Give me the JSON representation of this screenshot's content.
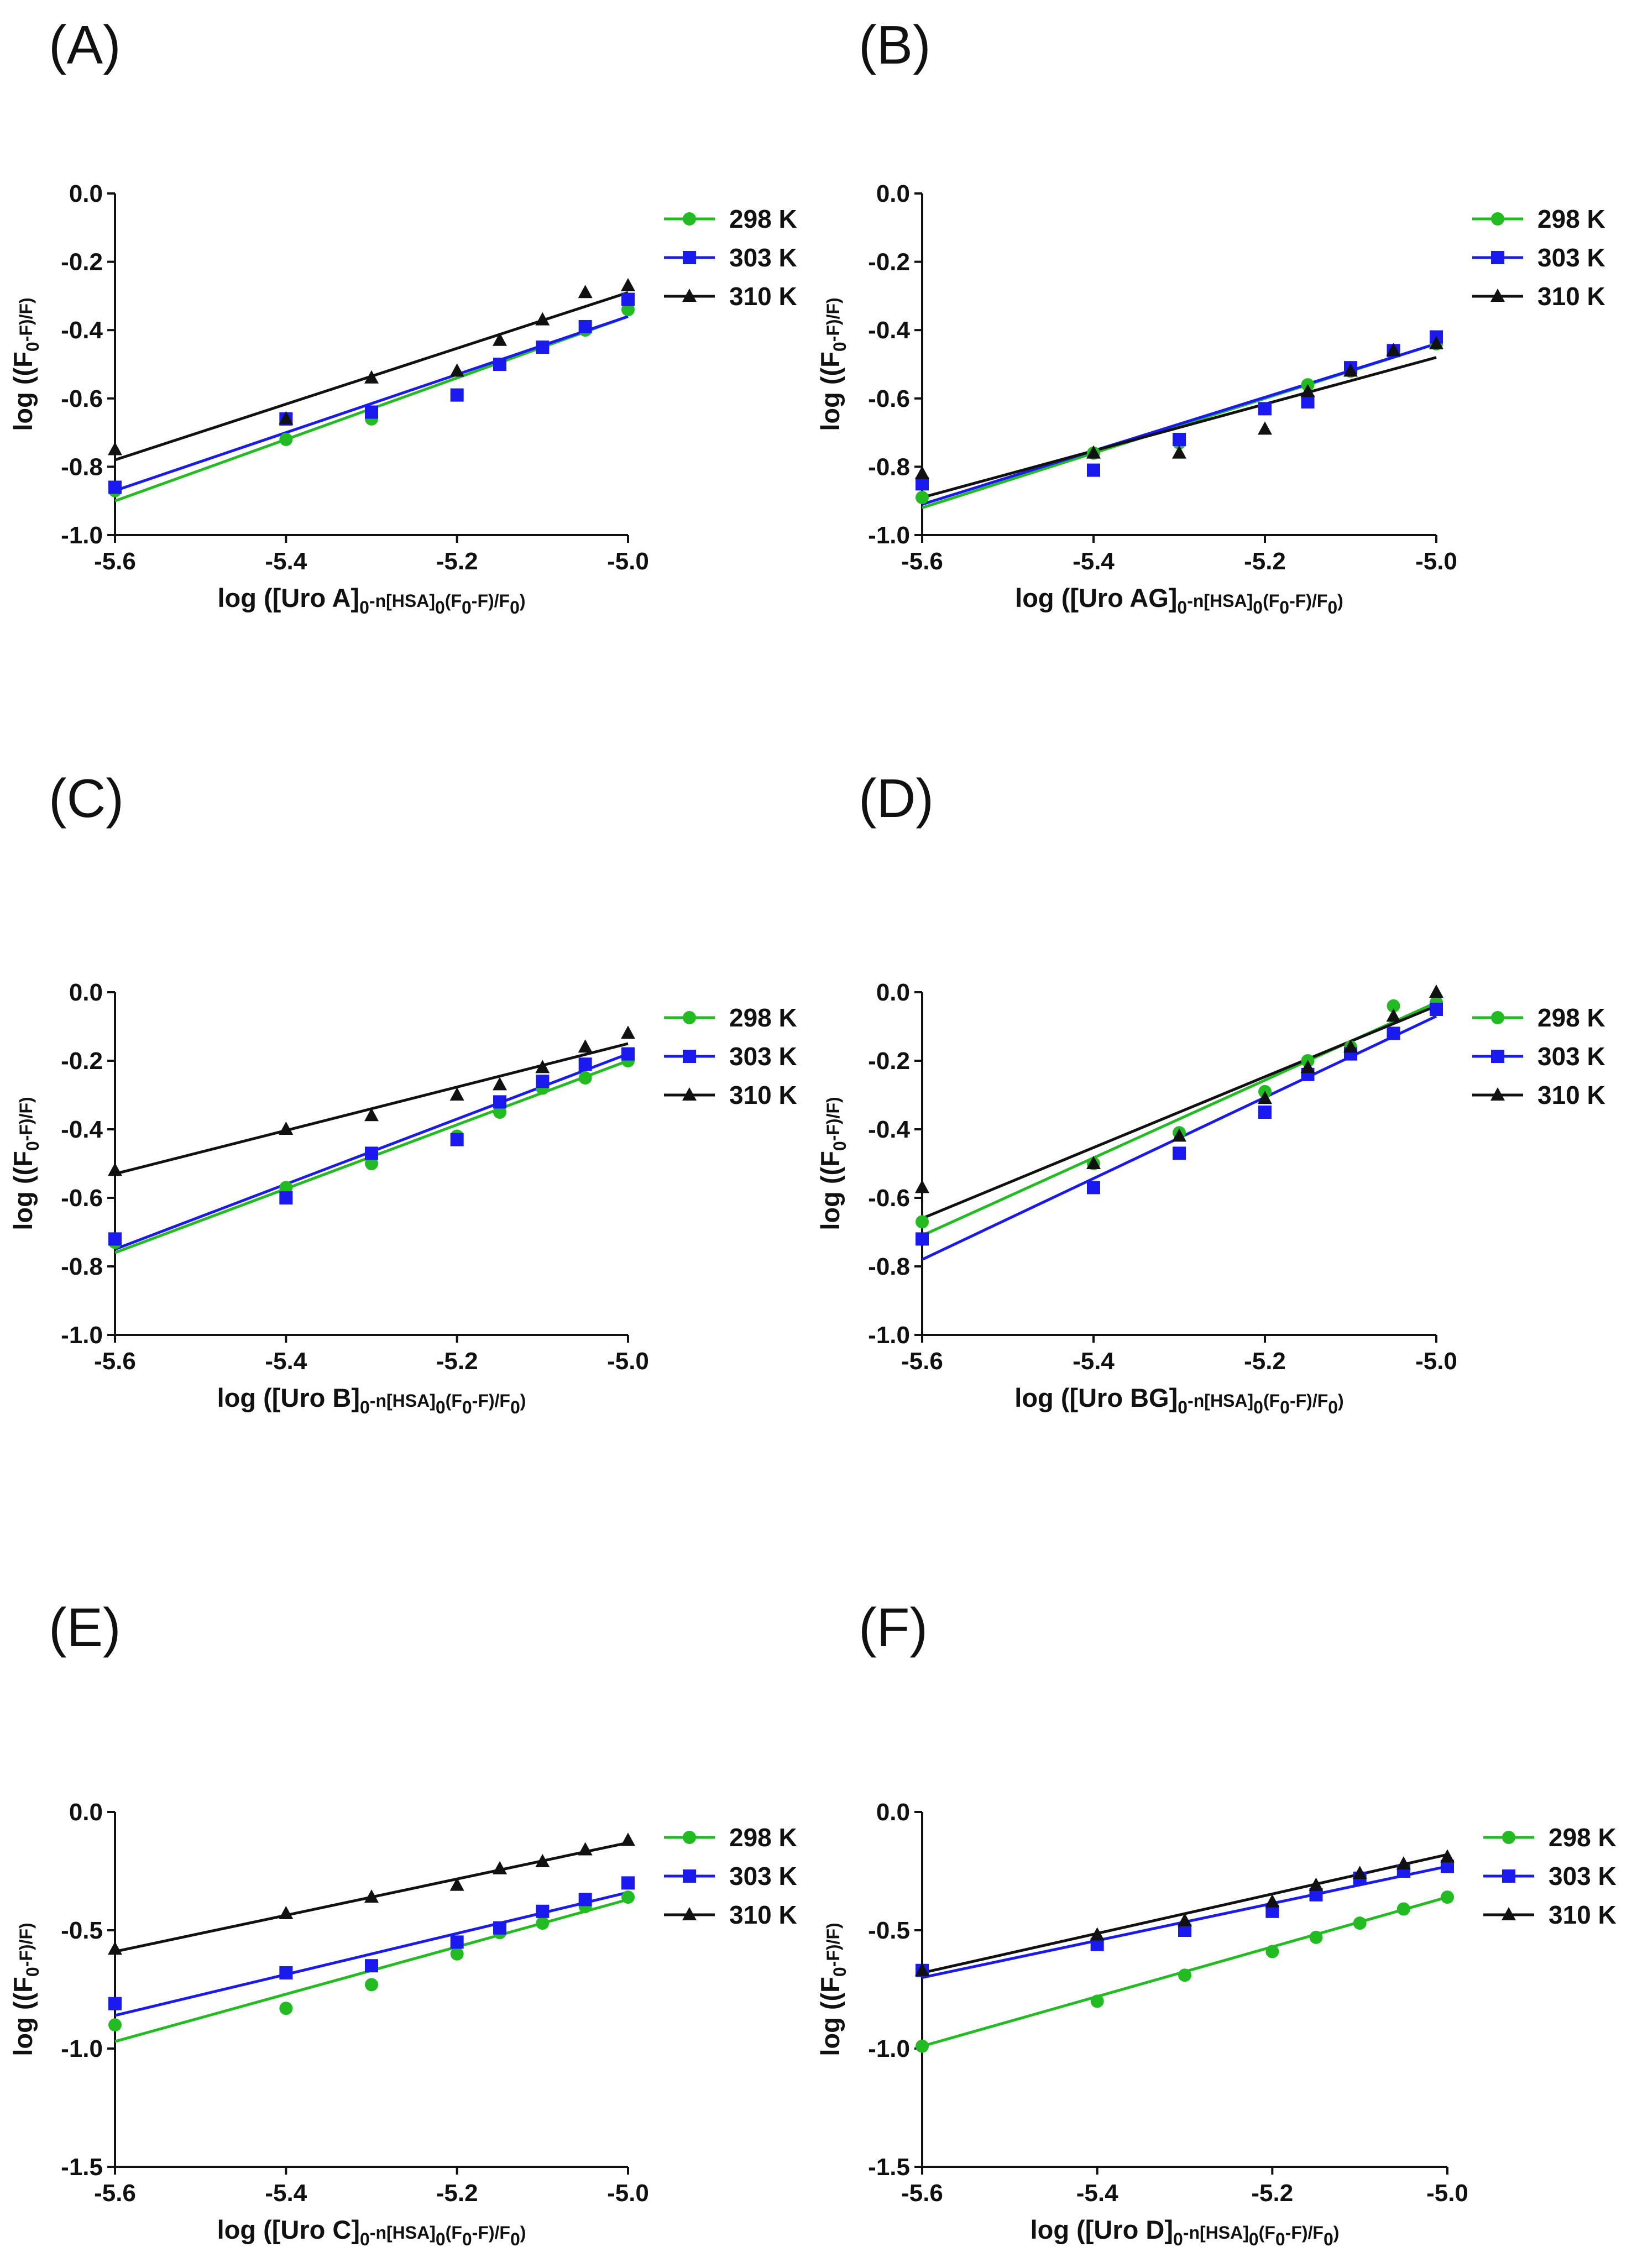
{
  "colors": {
    "298 K": "#22bb22",
    "303 K": "#1a1aee",
    "310 K": "#111111"
  },
  "chart_data": [
    {
      "type": "scatter",
      "panel": "(A)",
      "xlabel": {
        "pre": "log ([Uro A]",
        "s1": "0",
        "mid": "-n[HSA]",
        "s2": "0",
        "mid2": "(F",
        "s3": "0",
        "mid3": "-F)/F",
        "s4": "0",
        "post": ")"
      },
      "ylabel": {
        "pre": "log ((F",
        "sub": "0",
        "post": "-F)/F)"
      },
      "xlim": [
        -5.6,
        -5.0
      ],
      "ylim": [
        -1.0,
        0.0
      ],
      "xticks": [
        -5.6,
        -5.4,
        -5.2,
        -5.0
      ],
      "xtick_labels": [
        "-5.6",
        "-5.4",
        "-5.2",
        "-5.0"
      ],
      "yticks": [
        -1.0,
        -0.8,
        -0.6,
        -0.4,
        -0.2,
        0.0
      ],
      "ytick_labels": [
        "-1.0",
        "-0.8",
        "-0.6",
        "-0.4",
        "-0.2",
        "0.0"
      ],
      "x": [
        -5.6,
        -5.4,
        -5.3,
        -5.2,
        -5.15,
        -5.1,
        -5.05,
        -5.0
      ],
      "series": [
        {
          "name": "298 K",
          "marker": "circle",
          "values": [
            -0.87,
            -0.72,
            -0.66,
            -0.59,
            -0.5,
            -0.45,
            -0.4,
            -0.34
          ],
          "fit": [
            -0.9,
            -0.36
          ]
        },
        {
          "name": "303 K",
          "marker": "square",
          "values": [
            -0.86,
            -0.66,
            -0.64,
            -0.59,
            -0.5,
            -0.45,
            -0.39,
            -0.31
          ],
          "fit": [
            -0.87,
            -0.36
          ]
        },
        {
          "name": "310 K",
          "marker": "triangle",
          "values": [
            -0.75,
            -0.66,
            -0.54,
            -0.52,
            -0.43,
            -0.37,
            -0.29,
            -0.27
          ],
          "fit": [
            -0.78,
            -0.29
          ]
        }
      ]
    },
    {
      "type": "scatter",
      "panel": "(B)",
      "xlabel": {
        "pre": "log ([Uro AG]",
        "s1": "0",
        "mid": "-n[HSA]",
        "s2": "0",
        "mid2": "(F",
        "s3": "0",
        "mid3": "-F)/F",
        "s4": "0",
        "post": ")"
      },
      "ylabel": {
        "pre": "log ((F",
        "sub": "0",
        "post": "-F)/F)"
      },
      "xlim": [
        -5.6,
        -5.0
      ],
      "ylim": [
        -1.0,
        0.0
      ],
      "xticks": [
        -5.6,
        -5.4,
        -5.2,
        -5.0
      ],
      "xtick_labels": [
        "-5.6",
        "-5.4",
        "-5.2",
        "-5.0"
      ],
      "yticks": [
        -1.0,
        -0.8,
        -0.6,
        -0.4,
        -0.2,
        0.0
      ],
      "ytick_labels": [
        "-1.0",
        "-0.8",
        "-0.6",
        "-0.4",
        "-0.2",
        "0.0"
      ],
      "x": [
        -5.6,
        -5.4,
        -5.3,
        -5.2,
        -5.15,
        -5.1,
        -5.05,
        -5.0
      ],
      "series": [
        {
          "name": "298 K",
          "marker": "circle",
          "values": [
            -0.89,
            -0.76,
            -0.73,
            -0.63,
            -0.56,
            -0.52,
            -0.46,
            -0.44
          ],
          "fit": [
            -0.92,
            -0.44
          ]
        },
        {
          "name": "303 K",
          "marker": "square",
          "values": [
            -0.85,
            -0.81,
            -0.72,
            -0.63,
            -0.61,
            -0.51,
            -0.46,
            -0.42
          ],
          "fit": [
            -0.91,
            -0.44
          ]
        },
        {
          "name": "310 K",
          "marker": "triangle",
          "values": [
            -0.82,
            -0.76,
            -0.76,
            -0.69,
            -0.58,
            -0.52,
            -0.46,
            -0.44
          ],
          "fit": [
            -0.89,
            -0.48
          ]
        }
      ]
    },
    {
      "type": "scatter",
      "panel": "(C)",
      "xlabel": {
        "pre": "log ([Uro B]",
        "s1": "0",
        "mid": "-n[HSA]",
        "s2": "0",
        "mid2": "(F",
        "s3": "0",
        "mid3": "-F)/F",
        "s4": "0",
        "post": ")"
      },
      "ylabel": {
        "pre": "log ((F",
        "sub": "0",
        "post": "-F)/F)"
      },
      "xlim": [
        -5.6,
        -5.0
      ],
      "ylim": [
        -1.0,
        0.0
      ],
      "xticks": [
        -5.6,
        -5.4,
        -5.2,
        -5.0
      ],
      "xtick_labels": [
        "-5.6",
        "-5.4",
        "-5.2",
        "-5.0"
      ],
      "yticks": [
        -1.0,
        -0.8,
        -0.6,
        -0.4,
        -0.2,
        0.0
      ],
      "ytick_labels": [
        "-1.0",
        "-0.8",
        "-0.6",
        "-0.4",
        "-0.2",
        "0.0"
      ],
      "x": [
        -5.6,
        -5.4,
        -5.3,
        -5.2,
        -5.15,
        -5.1,
        -5.05,
        -5.0
      ],
      "series": [
        {
          "name": "298 K",
          "marker": "circle",
          "values": [
            -0.73,
            -0.57,
            -0.5,
            -0.42,
            -0.35,
            -0.28,
            -0.25,
            -0.2
          ],
          "fit": [
            -0.76,
            -0.2
          ]
        },
        {
          "name": "303 K",
          "marker": "square",
          "values": [
            -0.72,
            -0.6,
            -0.47,
            -0.43,
            -0.32,
            -0.26,
            -0.21,
            -0.18
          ],
          "fit": [
            -0.75,
            -0.18
          ]
        },
        {
          "name": "310 K",
          "marker": "triangle",
          "values": [
            -0.52,
            -0.4,
            -0.36,
            -0.3,
            -0.27,
            -0.22,
            -0.16,
            -0.12
          ],
          "fit": [
            -0.53,
            -0.15
          ]
        }
      ]
    },
    {
      "type": "scatter",
      "panel": "(D)",
      "xlabel": {
        "pre": "log ([Uro BG]",
        "s1": "0",
        "mid": "-n[HSA]",
        "s2": "0",
        "mid2": "(F",
        "s3": "0",
        "mid3": "-F)/F",
        "s4": "0",
        "post": ")"
      },
      "ylabel": {
        "pre": "log ((F",
        "sub": "0",
        "post": "-F)/F)"
      },
      "xlim": [
        -5.6,
        -5.0
      ],
      "ylim": [
        -1.0,
        0.0
      ],
      "xticks": [
        -5.6,
        -5.4,
        -5.2,
        -5.0
      ],
      "xtick_labels": [
        "-5.6",
        "-5.4",
        "-5.2",
        "-5.0"
      ],
      "yticks": [
        -1.0,
        -0.8,
        -0.6,
        -0.4,
        -0.2,
        0.0
      ],
      "ytick_labels": [
        "-1.0",
        "-0.8",
        "-0.6",
        "-0.4",
        "-0.2",
        "0.0"
      ],
      "x": [
        -5.6,
        -5.4,
        -5.3,
        -5.2,
        -5.15,
        -5.1,
        -5.05,
        -5.0
      ],
      "series": [
        {
          "name": "298 K",
          "marker": "circle",
          "values": [
            -0.67,
            -0.5,
            -0.41,
            -0.29,
            -0.2,
            -0.16,
            -0.04,
            -0.03
          ],
          "fit": [
            -0.71,
            -0.03
          ]
        },
        {
          "name": "303 K",
          "marker": "square",
          "values": [
            -0.72,
            -0.57,
            -0.47,
            -0.35,
            -0.24,
            -0.18,
            -0.12,
            -0.05
          ],
          "fit": [
            -0.78,
            -0.07
          ]
        },
        {
          "name": "310 K",
          "marker": "triangle",
          "values": [
            -0.57,
            -0.5,
            -0.42,
            -0.31,
            -0.22,
            -0.16,
            -0.07,
            0.0
          ],
          "fit": [
            -0.66,
            -0.04
          ]
        }
      ]
    },
    {
      "type": "scatter",
      "panel": "(E)",
      "xlabel": {
        "pre": "log ([Uro C]",
        "s1": "0",
        "mid": "-n[HSA]",
        "s2": "0",
        "mid2": "(F",
        "s3": "0",
        "mid3": "-F)/F",
        "s4": "0",
        "post": ")"
      },
      "ylabel": {
        "pre": "log ((F",
        "sub": "0",
        "post": "-F)/F)"
      },
      "xlim": [
        -5.6,
        -5.0
      ],
      "ylim": [
        -1.5,
        0.0
      ],
      "xticks": [
        -5.6,
        -5.4,
        -5.2,
        -5.0
      ],
      "xtick_labels": [
        "-5.6",
        "-5.4",
        "-5.2",
        "-5.0"
      ],
      "yticks": [
        -1.5,
        -1.0,
        -0.5,
        0.0
      ],
      "ytick_labels": [
        "-1.5",
        "-1.0",
        "-0.5",
        "0.0"
      ],
      "x": [
        -5.6,
        -5.4,
        -5.3,
        -5.2,
        -5.15,
        -5.1,
        -5.05,
        -5.0
      ],
      "series": [
        {
          "name": "298 K",
          "marker": "circle",
          "values": [
            -0.9,
            -0.83,
            -0.73,
            -0.6,
            -0.51,
            -0.47,
            -0.4,
            -0.36
          ],
          "fit": [
            -0.97,
            -0.37
          ]
        },
        {
          "name": "303 K",
          "marker": "square",
          "values": [
            -0.81,
            -0.68,
            -0.65,
            -0.55,
            -0.49,
            -0.42,
            -0.37,
            -0.3
          ],
          "fit": [
            -0.86,
            -0.34
          ]
        },
        {
          "name": "310 K",
          "marker": "triangle",
          "values": [
            -0.58,
            -0.43,
            -0.36,
            -0.31,
            -0.24,
            -0.21,
            -0.16,
            -0.12
          ],
          "fit": [
            -0.59,
            -0.13
          ]
        }
      ]
    },
    {
      "type": "scatter",
      "panel": "(F)",
      "xlabel": {
        "pre": "log ([Uro D]",
        "s1": "0",
        "mid": "-n[HSA]",
        "s2": "0",
        "mid2": "(F",
        "s3": "0",
        "mid3": "-F)/F",
        "s4": "0",
        "post": ")"
      },
      "ylabel": {
        "pre": "log ((F",
        "sub": "0",
        "post": "-F)/F)"
      },
      "xlim": [
        -5.6,
        -5.0
      ],
      "ylim": [
        -1.5,
        0.0
      ],
      "xticks": [
        -5.6,
        -5.4,
        -5.2,
        -5.0
      ],
      "xtick_labels": [
        "-5.6",
        "-5.4",
        "-5.2",
        "-5.0"
      ],
      "yticks": [
        -1.5,
        -1.0,
        -0.5,
        0.0
      ],
      "ytick_labels": [
        "-1.5",
        "-1.0",
        "-0.5",
        "0.0"
      ],
      "x": [
        -5.6,
        -5.4,
        -5.3,
        -5.2,
        -5.15,
        -5.1,
        -5.05,
        -5.0
      ],
      "series": [
        {
          "name": "298 K",
          "marker": "circle",
          "values": [
            -0.99,
            -0.8,
            -0.69,
            -0.59,
            -0.53,
            -0.47,
            -0.41,
            -0.36
          ],
          "fit": [
            -0.99,
            -0.36
          ]
        },
        {
          "name": "303 K",
          "marker": "square",
          "values": [
            -0.67,
            -0.56,
            -0.5,
            -0.42,
            -0.35,
            -0.28,
            -0.25,
            -0.23
          ],
          "fit": [
            -0.7,
            -0.23
          ]
        },
        {
          "name": "310 K",
          "marker": "triangle",
          "values": [
            -0.67,
            -0.52,
            -0.46,
            -0.38,
            -0.31,
            -0.26,
            -0.22,
            -0.19
          ],
          "fit": [
            -0.68,
            -0.18
          ]
        }
      ]
    }
  ]
}
